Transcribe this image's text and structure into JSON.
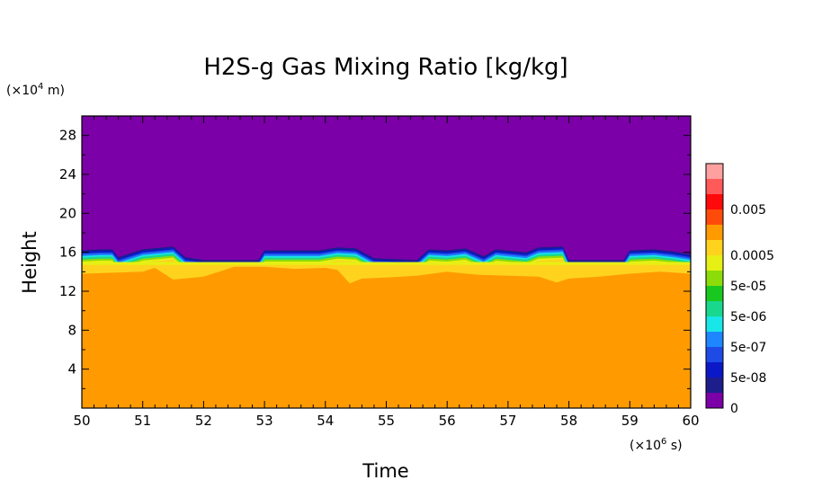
{
  "chart_data": {
    "type": "heatmap",
    "title": "H2S-g Gas Mixing Ratio [kg/kg]",
    "xlabel": "Time",
    "ylabel": "Height",
    "x_unit": "(×10",
    "x_unit_exp": "6",
    "x_unit_tail": " s)",
    "y_unit": "(×10",
    "y_unit_exp": "4",
    "y_unit_tail": " m)",
    "xlim": [
      50,
      60
    ],
    "ylim": [
      0,
      30
    ],
    "x_ticks": [
      "50",
      "51",
      "52",
      "53",
      "54",
      "55",
      "56",
      "57",
      "58",
      "59",
      "60"
    ],
    "y_ticks": [
      "4",
      "8",
      "12",
      "16",
      "20",
      "24",
      "28"
    ],
    "colorbar": {
      "levels": [
        {
          "color": "#7b00a8",
          "label": "0"
        },
        {
          "color": "#1d1d8c",
          "label": ""
        },
        {
          "color": "#0a18c8",
          "label": "5e-08"
        },
        {
          "color": "#1e4be6",
          "label": ""
        },
        {
          "color": "#1e87ff",
          "label": "5e-07"
        },
        {
          "color": "#19e6e6",
          "label": ""
        },
        {
          "color": "#19d78c",
          "label": "5e-06"
        },
        {
          "color": "#19c81e",
          "label": ""
        },
        {
          "color": "#8cdc0a",
          "label": "5e-05"
        },
        {
          "color": "#e6f014",
          "label": ""
        },
        {
          "color": "#ffd21e",
          "label": "0.0005"
        },
        {
          "color": "#ff9b00",
          "label": ""
        },
        {
          "color": "#ff4b0a",
          "label": ""
        },
        {
          "color": "#ff0a0a",
          "label": "0.005"
        },
        {
          "color": "#ff5a5a",
          "label": ""
        },
        {
          "color": "#ffa0a0",
          "label": ""
        }
      ]
    },
    "field": {
      "background_value_color": "#7b00a8",
      "lower_fill_color": "#ff9b00",
      "tropopause_top_profile": {
        "x": [
          50.0,
          50.3,
          50.5,
          50.6,
          51.0,
          51.5,
          51.7,
          52.0,
          52.9,
          53.0,
          53.9,
          54.2,
          54.5,
          54.8,
          55.5,
          55.7,
          56.0,
          56.3,
          56.6,
          56.8,
          57.3,
          57.5,
          57.9,
          58.0,
          58.9,
          59.0,
          59.4,
          59.7,
          60.0
        ],
        "y": [
          16.2,
          16.3,
          16.3,
          15.5,
          16.3,
          16.6,
          15.5,
          15.2,
          15.2,
          16.2,
          16.2,
          16.5,
          16.4,
          15.4,
          15.2,
          16.3,
          16.2,
          16.4,
          15.6,
          16.3,
          16.0,
          16.5,
          16.6,
          15.2,
          15.2,
          16.2,
          16.3,
          16.1,
          15.8
        ]
      },
      "orange_top_profile": {
        "x": [
          50.0,
          50.5,
          51.0,
          51.2,
          51.5,
          52.0,
          52.5,
          53.0,
          53.5,
          54.0,
          54.2,
          54.4,
          54.6,
          55.0,
          55.5,
          56.0,
          56.5,
          57.0,
          57.5,
          57.8,
          58.0,
          58.5,
          59.0,
          59.5,
          60.0
        ],
        "y": [
          13.8,
          13.9,
          14.0,
          14.4,
          13.2,
          13.5,
          14.5,
          14.5,
          14.3,
          14.4,
          14.2,
          12.8,
          13.3,
          13.4,
          13.6,
          14.0,
          13.7,
          13.6,
          13.5,
          12.9,
          13.3,
          13.5,
          13.8,
          14.0,
          13.8
        ]
      }
    }
  }
}
